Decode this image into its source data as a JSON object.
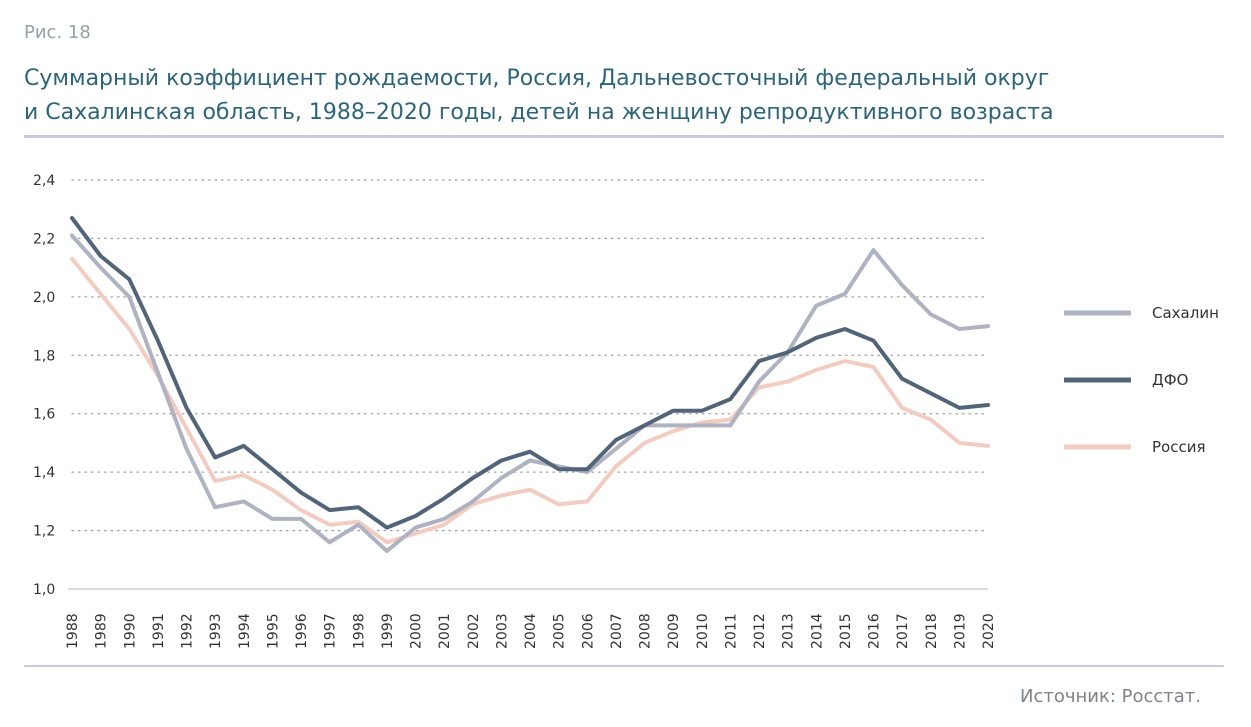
{
  "figure_label": "Рис. 18",
  "title_line1": "Суммарный коэффициент рождаемости, Россия, Дальневосточный федеральный округ",
  "title_line2": "и Сахалинская область, 1988–2020 годы, детей на женщину репродуктивного возраста",
  "source": "Источник: Росстат.",
  "chart_data": {
    "type": "line",
    "x": [
      "1988",
      "1989",
      "1990",
      "1991",
      "1992",
      "1993",
      "1994",
      "1995",
      "1996",
      "1997",
      "1998",
      "1999",
      "2000",
      "2001",
      "2002",
      "2003",
      "2004",
      "2005",
      "2006",
      "2007",
      "2008",
      "2009",
      "2010",
      "2011",
      "2012",
      "2013",
      "2014",
      "2015",
      "2016",
      "2017",
      "2018",
      "2019",
      "2020"
    ],
    "y_ticks": [
      "1,0",
      "1,2",
      "1,4",
      "1,6",
      "1,8",
      "2,0",
      "2,2",
      "2,4"
    ],
    "ylim": [
      1.0,
      2.4
    ],
    "grid": "horizontal-dotted",
    "legend_position": "right",
    "series": [
      {
        "name": "Сахалин",
        "color": "#aeb2c1",
        "values": [
          2.21,
          2.1,
          2.0,
          1.74,
          1.48,
          1.28,
          1.3,
          1.24,
          1.24,
          1.16,
          1.22,
          1.13,
          1.21,
          1.24,
          1.3,
          1.38,
          1.44,
          1.42,
          1.4,
          1.48,
          1.56,
          1.56,
          1.56,
          1.56,
          1.71,
          1.81,
          1.97,
          2.01,
          2.16,
          2.04,
          1.94,
          1.89,
          1.9
        ]
      },
      {
        "name": "ДФО",
        "color": "#526478",
        "values": [
          2.27,
          2.14,
          2.06,
          1.85,
          1.62,
          1.45,
          1.49,
          1.41,
          1.33,
          1.27,
          1.28,
          1.21,
          1.25,
          1.31,
          1.38,
          1.44,
          1.47,
          1.41,
          1.41,
          1.51,
          1.56,
          1.61,
          1.61,
          1.65,
          1.78,
          1.81,
          1.86,
          1.89,
          1.85,
          1.72,
          1.67,
          1.62,
          1.63
        ]
      },
      {
        "name": "Россия",
        "color": "#f2ccc0",
        "values": [
          2.13,
          2.01,
          1.89,
          1.73,
          1.55,
          1.37,
          1.39,
          1.34,
          1.27,
          1.22,
          1.23,
          1.16,
          1.19,
          1.22,
          1.29,
          1.32,
          1.34,
          1.29,
          1.3,
          1.42,
          1.5,
          1.54,
          1.57,
          1.58,
          1.69,
          1.71,
          1.75,
          1.78,
          1.76,
          1.62,
          1.58,
          1.5,
          1.49
        ]
      }
    ]
  }
}
